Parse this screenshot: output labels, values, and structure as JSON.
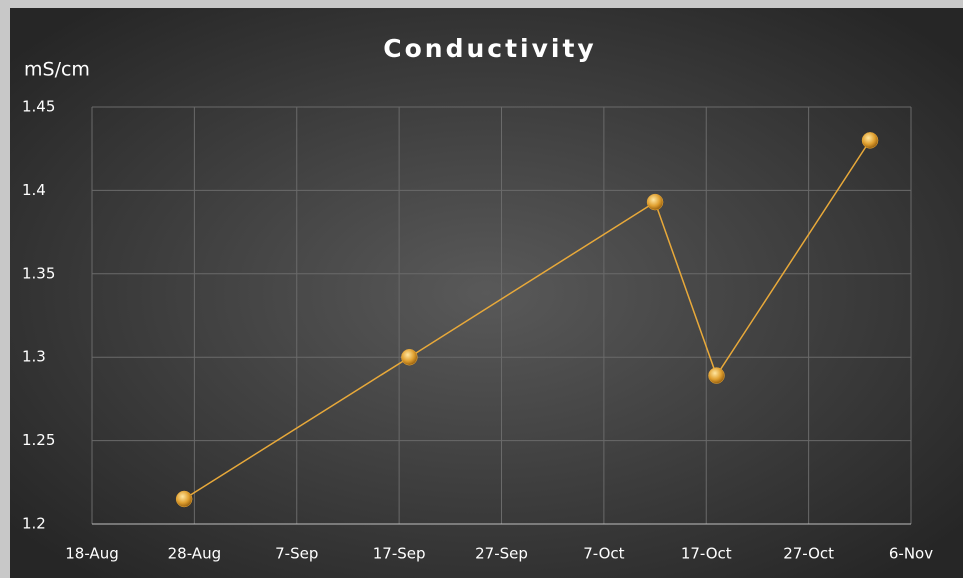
{
  "chart_data": {
    "type": "line",
    "title": "Conductivity",
    "y_label": "mS/cm",
    "x": [
      "27-Aug",
      "18-Sep",
      "12-Oct",
      "18-Oct",
      "2-Nov"
    ],
    "series": [
      {
        "name": "Conductivity",
        "color": "#e8a93a",
        "values": [
          1.215,
          1.3,
          1.393,
          1.289,
          1.43
        ]
      }
    ],
    "xlim": [
      "18-Aug",
      "6-Nov"
    ],
    "xticks": [
      "18-Aug",
      "28-Aug",
      "7-Sep",
      "17-Sep",
      "27-Sep",
      "7-Oct",
      "17-Oct",
      "27-Oct",
      "6-Nov"
    ],
    "ylim": [
      1.2,
      1.45
    ],
    "yticks": [
      1.2,
      1.25,
      1.3,
      1.35,
      1.4,
      1.45
    ],
    "grid": true
  }
}
